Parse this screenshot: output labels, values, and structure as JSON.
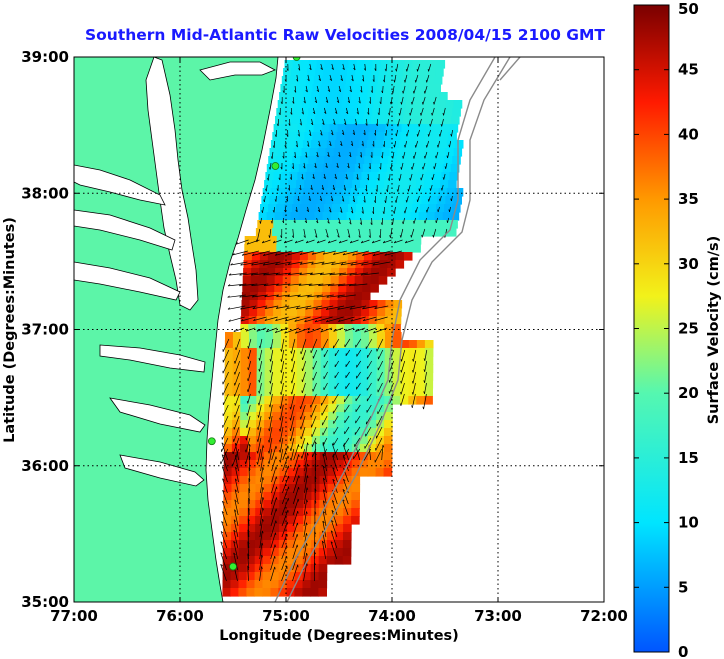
{
  "title": "Southern Mid-Atlantic Raw Velocities 2008/04/15 2100 GMT",
  "x_axis": {
    "label": "Longitude (Degrees:Minutes)",
    "ticks": [
      "77:00",
      "76:00",
      "75:00",
      "74:00",
      "73:00",
      "72:00"
    ]
  },
  "y_axis": {
    "label": "Latitude (Degrees:Minutes)",
    "ticks": [
      "39:00",
      "38:00",
      "37:00",
      "36:00",
      "35:00"
    ]
  },
  "colorbar": {
    "label": "Surface Velocity (cm/s)",
    "min": 0,
    "max": 50,
    "ticks": [
      "0",
      "5",
      "10",
      "15",
      "20",
      "25",
      "30",
      "35",
      "40",
      "45",
      "50"
    ]
  },
  "colors": {
    "land": "#5cf5a8",
    "water_bg": "#ffffff",
    "title": "#1a1aff",
    "station": "#33ee33",
    "bathymetry": "#8a8a8a"
  },
  "map": {
    "lon_range": [
      -77,
      -72
    ],
    "lat_range": [
      35,
      39
    ],
    "grid": true,
    "stations": [
      {
        "lon": -74.9,
        "lat": 39.0
      },
      {
        "lon": -75.1,
        "lat": 38.2
      },
      {
        "lon": -75.7,
        "lat": 36.18
      },
      {
        "lon": -75.5,
        "lat": 35.26
      }
    ]
  }
}
